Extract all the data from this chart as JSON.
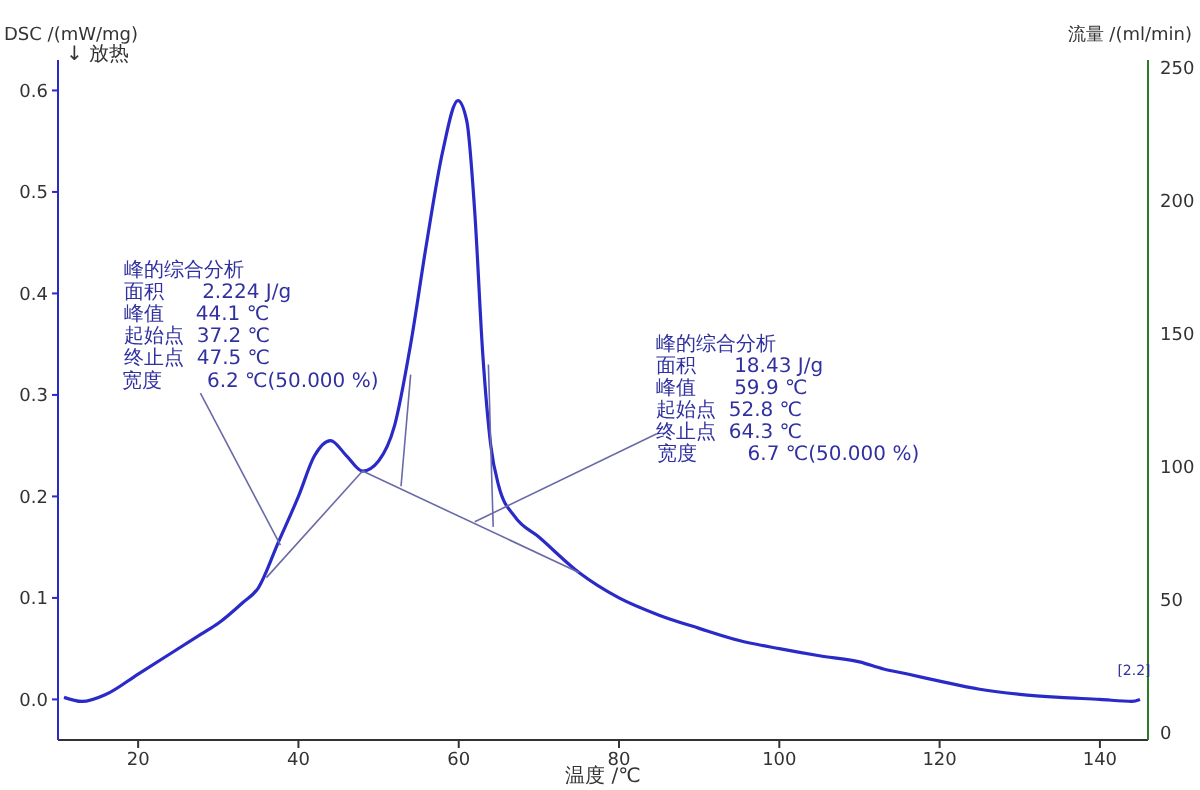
{
  "chart_data": {
    "type": "line",
    "xlabel": "温度 /℃",
    "ylabel": "DSC /(mW/mg)",
    "y2label": "流量 /(ml/min)",
    "xlim": [
      10,
      146
    ],
    "xticks": [
      20,
      40,
      60,
      80,
      100,
      120,
      140
    ],
    "ylim": [
      -0.04,
      0.63
    ],
    "yticks": [
      {
        "value": 0,
        "label": "0.0"
      },
      0.1,
      0.2,
      0.3,
      0.4,
      0.5,
      0.6
    ],
    "y2lim": [
      -2.5,
      253
    ],
    "y2ticks": [
      0,
      50,
      100,
      150,
      200,
      250
    ],
    "grid": false,
    "marker": "none",
    "line_style": "solid",
    "series": [
      {
        "color": "#2a2ac8",
        "x": [
          10.75,
          13,
          16,
          20,
          24,
          28,
          30,
          33,
          35,
          37.5,
          40,
          42,
          44,
          46,
          48,
          50,
          52,
          54,
          56,
          58,
          59.9,
          61,
          62,
          63,
          64,
          65,
          67,
          70,
          75,
          80,
          85,
          90,
          95,
          100,
          105,
          110,
          113,
          116,
          120,
          125,
          130,
          135,
          140,
          144,
          145
        ],
        "values": [
          0.002,
          -0.002,
          0.005,
          0.025,
          0.045,
          0.065,
          0.075,
          0.095,
          0.11,
          0.155,
          0.2,
          0.24,
          0.255,
          0.24,
          0.225,
          0.235,
          0.27,
          0.35,
          0.45,
          0.54,
          0.59,
          0.57,
          0.48,
          0.34,
          0.25,
          0.21,
          0.18,
          0.16,
          0.125,
          0.1,
          0.083,
          0.07,
          0.058,
          0.05,
          0.043,
          0.037,
          0.03,
          0.025,
          0.018,
          0.01,
          0.005,
          0.002,
          0.0,
          -0.002,
          0.0
        ]
      },
      {
        "color": "#6a6aa8",
        "x": [
          36,
          48
        ],
        "values": [
          0.12,
          0.225
        ]
      },
      {
        "color": "#6a6aa8",
        "x": [
          48,
          75
        ],
        "values": [
          0.225,
          0.125
        ]
      },
      {
        "color": "#6a6aa8",
        "x": [
          52.8,
          54
        ],
        "values": [
          0.21,
          0.32
        ]
      },
      {
        "color": "#6a6aa8",
        "x": [
          64.3,
          63.7
        ],
        "values": [
          0.17,
          0.33
        ]
      }
    ],
    "annotations": [
      "↓ 放热",
      "峰的综合分析",
      "面积      2.224 J/g",
      "峰值     44.1 ℃",
      "起始点  37.2 ℃",
      "终止点  47.5 ℃",
      {
        "text": "宽度       6.2 ℃(50.000 %)",
        "x": 37.75,
        "y": 0.152
      },
      "峰的综合分析",
      "面积      18.43 J/g",
      "峰值      59.9 ℃",
      "起始点  52.8 ℃",
      "终止点  64.3 ℃",
      {
        "text": "宽度        6.7 ℃(50.000 %)",
        "x": 62,
        "y": 0.175
      },
      {
        "text": "[2.2]",
        "x": 145,
        "y": 0
      }
    ]
  }
}
